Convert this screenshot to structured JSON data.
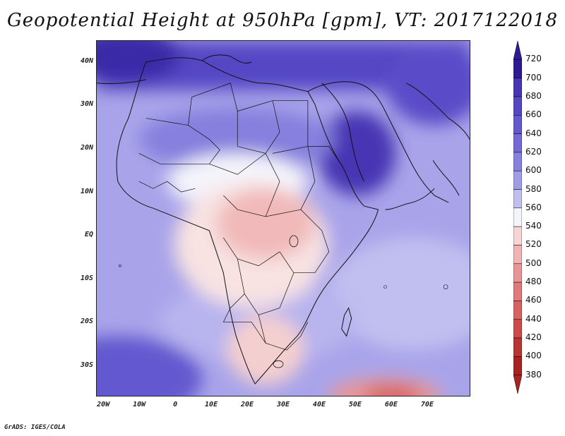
{
  "title": "Geopotential Height at 950hPa [gpm], VT: 2017122018",
  "credit": "GrADS: IGES/COLA",
  "lat_labels": [
    "40N",
    "30N",
    "20N",
    "10N",
    "EQ",
    "10S",
    "20S",
    "30S"
  ],
  "lat_values": [
    40,
    30,
    20,
    10,
    0,
    -10,
    -20,
    -30
  ],
  "lon_labels": [
    "20W",
    "10W",
    "0",
    "10E",
    "20E",
    "30E",
    "40E",
    "50E",
    "60E",
    "70E"
  ],
  "lon_values": [
    -20,
    -10,
    0,
    10,
    20,
    30,
    40,
    50,
    60,
    70
  ],
  "map_extent": {
    "lon_min": -22,
    "lon_max": 82,
    "lat_min": -37,
    "lat_max": 45
  },
  "colorbar": {
    "levels": [
      720,
      700,
      680,
      660,
      640,
      620,
      600,
      580,
      560,
      540,
      520,
      500,
      480,
      460,
      440,
      420,
      400,
      380
    ],
    "colors": [
      "#2c1a96",
      "#3a2aa8",
      "#4636b4",
      "#5546c4",
      "#6458cf",
      "#7469d6",
      "#8680de",
      "#a19ce6",
      "#c1bff0",
      "#f4f4fb",
      "#f8d5d5",
      "#f1b3b3",
      "#e99595",
      "#e07a7a",
      "#d86262",
      "#cc4a4a",
      "#bb3434",
      "#a82222"
    ]
  }
}
